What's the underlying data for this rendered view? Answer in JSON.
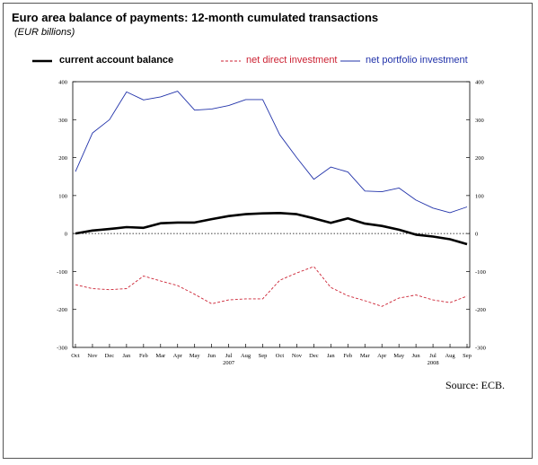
{
  "title": "Euro area balance of payments: 12-month cumulated transactions",
  "subtitle": "(EUR billions)",
  "source": "Source: ECB.",
  "chart_data": {
    "type": "line",
    "x": [
      "Oct",
      "Nov",
      "Dec",
      "Jan",
      "Feb",
      "Mar",
      "Apr",
      "May",
      "Jun",
      "Jul",
      "Aug",
      "Sep",
      "Oct",
      "Nov",
      "Dec",
      "Jan",
      "Feb",
      "Mar",
      "Apr",
      "May",
      "Jun",
      "Jul",
      "Aug",
      "Sep"
    ],
    "x_year_labels": [
      {
        "label": "2007",
        "at_index": 9
      },
      {
        "label": "2008",
        "at_index": 21
      }
    ],
    "series": [
      {
        "name": "current account balance",
        "color": "#000000",
        "style": "thick-solid",
        "values": [
          0,
          8,
          12,
          17,
          15,
          27,
          29,
          29,
          38,
          46,
          51,
          53,
          54,
          51,
          40,
          28,
          40,
          26,
          20,
          10,
          -3,
          -8,
          -15,
          -28
        ]
      },
      {
        "name": "net direct investment",
        "color": "#cc2233",
        "style": "dashed",
        "values": [
          -135,
          -145,
          -148,
          -145,
          -112,
          -125,
          -137,
          -160,
          -185,
          -175,
          -172,
          -172,
          -123,
          -104,
          -87,
          -142,
          -164,
          -177,
          -192,
          -170,
          -162,
          -175,
          -182,
          -165
        ]
      },
      {
        "name": "net portfolio investment",
        "color": "#2233aa",
        "style": "solid",
        "values": [
          163,
          265,
          300,
          373,
          352,
          360,
          375,
          325,
          328,
          337,
          353,
          353,
          260,
          200,
          143,
          175,
          162,
          112,
          110,
          120,
          88,
          67,
          55,
          70
        ]
      }
    ],
    "ylim": [
      -300,
      400
    ],
    "yticks": [
      -300,
      -200,
      -100,
      0,
      100,
      200,
      300,
      400
    ],
    "zero_line": "dotted",
    "grid": false,
    "legend_position": "top"
  }
}
